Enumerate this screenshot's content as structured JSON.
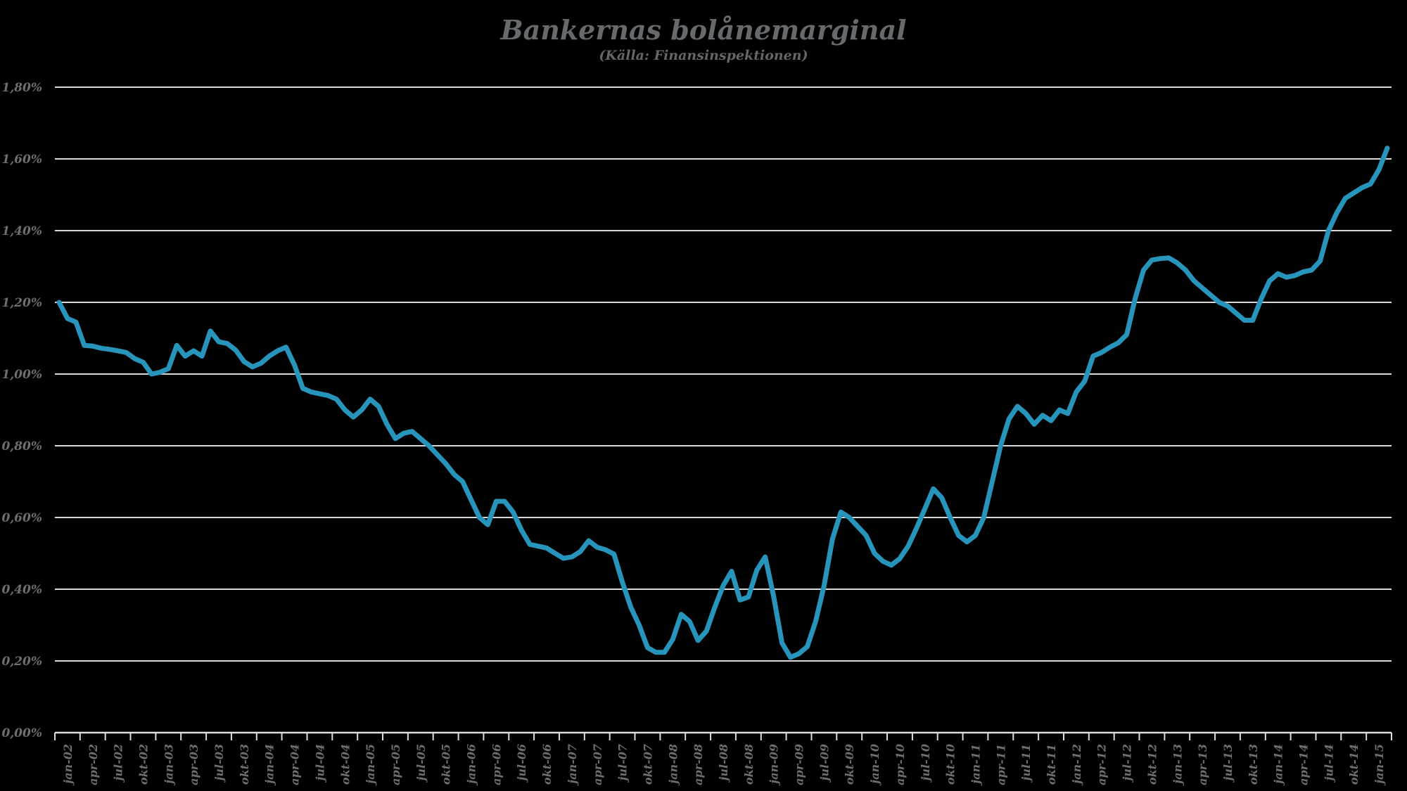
{
  "chart": {
    "title": "Bankernas bolånemarginal",
    "subtitle": "(Källa: Finansinspektionen)"
  },
  "chart_data": {
    "type": "line",
    "title": "Bankernas bolånemarginal",
    "subtitle": "(Källa: Finansinspektionen)",
    "xlabel": "",
    "ylabel": "",
    "frequency": "monthly",
    "x_start": "jan-02",
    "ylim": [
      0,
      1.8
    ],
    "grid": true,
    "legend": "none",
    "y_tick_labels": [
      "0,00%",
      "0,20%",
      "0,40%",
      "0,60%",
      "0,80%",
      "1,00%",
      "1,20%",
      "1,40%",
      "1,60%",
      "1,80%"
    ],
    "x_tick_labels": [
      "jan-02",
      "apr-02",
      "jul-02",
      "okt-02",
      "jan-03",
      "apr-03",
      "jul-03",
      "okt-03",
      "jan-04",
      "apr-04",
      "jul-04",
      "okt-04",
      "jan-05",
      "apr-05",
      "jul-05",
      "okt-05",
      "jan-06",
      "apr-06",
      "jul-06",
      "okt-06",
      "jan-07",
      "apr-07",
      "jul-07",
      "okt-07",
      "jan-08",
      "apr-08",
      "jul-08",
      "okt-08",
      "jan-09",
      "apr-09",
      "jul-09",
      "okt-09",
      "jan-10",
      "apr-10",
      "jul-10",
      "okt-10",
      "jan-11",
      "apr-11",
      "jul-11",
      "okt-11",
      "jan-12",
      "apr-12",
      "jul-12",
      "okt-12",
      "jan-13",
      "apr-13",
      "jul-13",
      "okt-13",
      "jan-14",
      "apr-14",
      "jul-14",
      "okt-14",
      "jan-15"
    ],
    "values": [
      1.2,
      1.155,
      1.145,
      1.08,
      1.078,
      1.072,
      1.069,
      1.065,
      1.06,
      1.043,
      1.033,
      1.0,
      1.005,
      1.015,
      1.08,
      1.05,
      1.065,
      1.05,
      1.12,
      1.09,
      1.085,
      1.067,
      1.035,
      1.02,
      1.03,
      1.05,
      1.065,
      1.075,
      1.025,
      0.96,
      0.95,
      0.945,
      0.94,
      0.93,
      0.9,
      0.88,
      0.9,
      0.93,
      0.91,
      0.86,
      0.82,
      0.835,
      0.84,
      0.82,
      0.8,
      0.775,
      0.75,
      0.72,
      0.7,
      0.65,
      0.6,
      0.58,
      0.645,
      0.645,
      0.615,
      0.565,
      0.525,
      0.52,
      0.515,
      0.5,
      0.486,
      0.49,
      0.505,
      0.535,
      0.517,
      0.51,
      0.498,
      0.42,
      0.35,
      0.3,
      0.237,
      0.224,
      0.224,
      0.26,
      0.33,
      0.31,
      0.257,
      0.283,
      0.35,
      0.41,
      0.45,
      0.37,
      0.378,
      0.453,
      0.49,
      0.38,
      0.25,
      0.21,
      0.22,
      0.24,
      0.31,
      0.41,
      0.54,
      0.615,
      0.6,
      0.575,
      0.55,
      0.5,
      0.478,
      0.467,
      0.485,
      0.52,
      0.57,
      0.625,
      0.68,
      0.655,
      0.6,
      0.55,
      0.532,
      0.55,
      0.6,
      0.7,
      0.8,
      0.875,
      0.91,
      0.89,
      0.86,
      0.885,
      0.87,
      0.9,
      0.89,
      0.95,
      0.98,
      1.05,
      1.06,
      1.075,
      1.087,
      1.11,
      1.21,
      1.29,
      1.318,
      1.322,
      1.324,
      1.31,
      1.29,
      1.26,
      1.24,
      1.22,
      1.2,
      1.19,
      1.17,
      1.15,
      1.15,
      1.21,
      1.26,
      1.28,
      1.27,
      1.275,
      1.285,
      1.29,
      1.315,
      1.4,
      1.45,
      1.49,
      1.505,
      1.52,
      1.53,
      1.57,
      1.63
    ],
    "colors": {
      "background": "#000000",
      "line": "#2795BB",
      "grid": "#D9D9D9",
      "axis": "#DCDCDC",
      "title_text": "#666A6D",
      "tick_text": "#6E6E6E"
    }
  }
}
